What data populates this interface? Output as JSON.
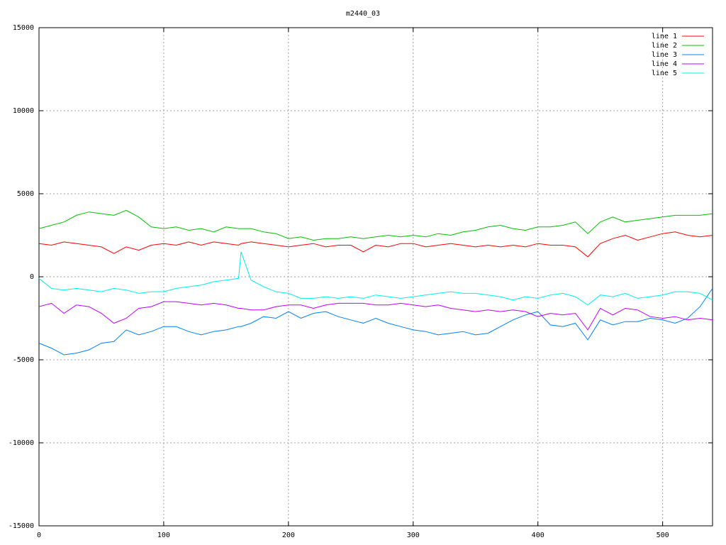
{
  "chart_data": {
    "type": "line",
    "title": "m2440_03",
    "x": [
      0,
      10,
      20,
      30,
      40,
      50,
      60,
      70,
      80,
      90,
      100,
      110,
      120,
      130,
      140,
      150,
      160,
      162,
      170,
      180,
      190,
      200,
      210,
      220,
      230,
      240,
      250,
      260,
      270,
      280,
      290,
      300,
      310,
      320,
      330,
      340,
      350,
      360,
      370,
      380,
      390,
      400,
      410,
      420,
      430,
      440,
      450,
      460,
      470,
      480,
      490,
      500,
      510,
      520,
      530,
      540
    ],
    "series": [
      {
        "name": "line 1",
        "color": "#ff0000",
        "values": [
          2000,
          1900,
          2100,
          2000,
          1900,
          1800,
          1400,
          1800,
          1600,
          1900,
          2000,
          1900,
          2100,
          1900,
          2100,
          2000,
          1900,
          2000,
          2100,
          2000,
          1900,
          1800,
          1900,
          2000,
          1800,
          1900,
          1900,
          1500,
          1900,
          1800,
          2000,
          2000,
          1800,
          1900,
          2000,
          1900,
          1800,
          1900,
          1800,
          1900,
          1800,
          2000,
          1900,
          1900,
          1800,
          1200,
          2000,
          2300,
          2500,
          2200,
          2400,
          2600,
          2700,
          2500,
          2400,
          2500
        ]
      },
      {
        "name": "line 2",
        "color": "#00c000",
        "values": [
          2900,
          3100,
          3300,
          3700,
          3900,
          3800,
          3700,
          4000,
          3600,
          3000,
          2900,
          3000,
          2800,
          2900,
          2700,
          3000,
          2900,
          2900,
          2900,
          2700,
          2600,
          2300,
          2400,
          2200,
          2300,
          2300,
          2400,
          2300,
          2400,
          2500,
          2400,
          2500,
          2400,
          2600,
          2500,
          2700,
          2800,
          3000,
          3100,
          2900,
          2800,
          3000,
          3000,
          3100,
          3300,
          2600,
          3300,
          3600,
          3300,
          3400,
          3500,
          3600,
          3700,
          3700,
          3700,
          3800
        ]
      },
      {
        "name": "line 3",
        "color": "#0080ff",
        "values": [
          -4000,
          -4300,
          -4700,
          -4600,
          -4400,
          -4000,
          -3900,
          -3200,
          -3500,
          -3300,
          -3000,
          -3000,
          -3300,
          -3500,
          -3300,
          -3200,
          -3000,
          -3000,
          -2800,
          -2400,
          -2500,
          -2100,
          -2500,
          -2200,
          -2100,
          -2400,
          -2600,
          -2800,
          -2500,
          -2800,
          -3000,
          -3200,
          -3300,
          -3500,
          -3400,
          -3300,
          -3500,
          -3400,
          -3000,
          -2600,
          -2300,
          -2100,
          -2900,
          -3000,
          -2800,
          -3800,
          -2600,
          -2900,
          -2700,
          -2700,
          -2500,
          -2600,
          -2800,
          -2500,
          -1800,
          -700
        ]
      },
      {
        "name": "line 4",
        "color": "#c000ff",
        "values": [
          -1800,
          -1600,
          -2200,
          -1700,
          -1800,
          -2200,
          -2800,
          -2500,
          -1900,
          -1800,
          -1500,
          -1500,
          -1600,
          -1700,
          -1600,
          -1700,
          -1900,
          -1900,
          -2000,
          -2000,
          -1800,
          -1700,
          -1700,
          -1900,
          -1700,
          -1600,
          -1600,
          -1600,
          -1700,
          -1700,
          -1600,
          -1700,
          -1800,
          -1700,
          -1900,
          -2000,
          -2100,
          -2000,
          -2100,
          -2000,
          -2100,
          -2400,
          -2200,
          -2300,
          -2200,
          -3200,
          -1900,
          -2300,
          -1900,
          -2000,
          -2400,
          -2500,
          -2400,
          -2600,
          -2500,
          -2600
        ]
      },
      {
        "name": "line 5",
        "color": "#00eeee",
        "values": [
          -100,
          -700,
          -800,
          -700,
          -800,
          -900,
          -700,
          -800,
          -1000,
          -900,
          -900,
          -700,
          -600,
          -500,
          -300,
          -200,
          -100,
          1500,
          -200,
          -600,
          -900,
          -1000,
          -1300,
          -1300,
          -1200,
          -1300,
          -1200,
          -1300,
          -1100,
          -1200,
          -1300,
          -1200,
          -1100,
          -1000,
          -900,
          -1000,
          -1000,
          -1100,
          -1200,
          -1400,
          -1200,
          -1300,
          -1100,
          -1000,
          -1200,
          -1700,
          -1100,
          -1200,
          -1000,
          -1300,
          -1200,
          -1100,
          -900,
          -900,
          -1000,
          -1400
        ]
      }
    ],
    "xlim": [
      0,
      540
    ],
    "xticks": [
      0,
      100,
      200,
      300,
      400,
      500
    ],
    "ylim": [
      -15000,
      15000
    ],
    "yticks": [
      -15000,
      -10000,
      -5000,
      0,
      5000,
      10000,
      15000
    ],
    "grid": true,
    "legend": "top-right"
  }
}
